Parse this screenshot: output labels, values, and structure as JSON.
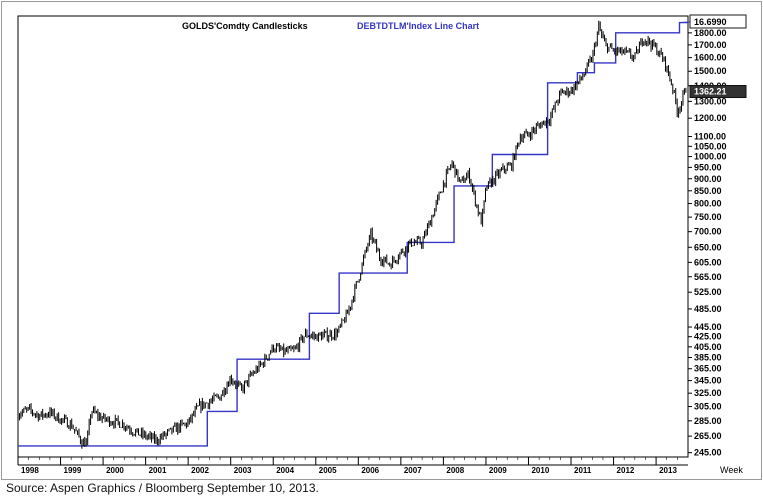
{
  "source_text": "Source: Aspen Graphics / Bloomberg September 10, 2013.",
  "chart_data": {
    "type": "line",
    "legend": {
      "placement": "top-center",
      "items": [
        {
          "label": "GOLDS'Comdty  Candlesticks",
          "color": "#000000"
        },
        {
          "label": "DEBTDTLM'Index  Line  Chart",
          "color": "#3535c8"
        }
      ]
    },
    "x_axis": {
      "label": "Week",
      "ticks": [
        "1998",
        "1999",
        "2000",
        "2001",
        "2002",
        "2003",
        "2004",
        "2005",
        "2006",
        "2007",
        "2008",
        "2009",
        "2010",
        "2011",
        "2012",
        "2013"
      ],
      "range": [
        1998.0,
        2013.75
      ]
    },
    "y_axis": {
      "scale": "log",
      "position": "right",
      "range": [
        240,
        1950
      ],
      "ticks": [
        "245.00",
        "265.00",
        "285.00",
        "305.00",
        "325.00",
        "345.00",
        "365.00",
        "385.00",
        "405.00",
        "425.00",
        "445.00",
        "485.00",
        "525.00",
        "565.00",
        "605.00",
        "650.00",
        "700.00",
        "750.00",
        "800.00",
        "850.00",
        "900.00",
        "950.00",
        "1000.00",
        "1050.00",
        "1100.00",
        "1200.00",
        "1300.00",
        "1400.00",
        "1500.00",
        "1600.00",
        "1700.00",
        "1800.00"
      ]
    },
    "value_labels": [
      {
        "text": "16.6990",
        "series": "DEBTDTLM'Index  Line  Chart",
        "style": "boxed"
      },
      {
        "text": "1362.21",
        "series": "GOLDS'Comdty  Candlesticks",
        "style": "boxed-dark"
      }
    ],
    "series": [
      {
        "name": "GOLDS'Comdty  Candlesticks",
        "style": "candles",
        "color": "#000000",
        "points": [
          [
            1998.0,
            295
          ],
          [
            1998.25,
            300
          ],
          [
            1998.5,
            292
          ],
          [
            1998.75,
            296
          ],
          [
            1999.0,
            287
          ],
          [
            1999.25,
            280
          ],
          [
            1999.5,
            258
          ],
          [
            1999.62,
            256
          ],
          [
            1999.72,
            300
          ],
          [
            1999.85,
            293
          ],
          [
            2000.0,
            288
          ],
          [
            2000.25,
            284
          ],
          [
            2000.5,
            280
          ],
          [
            2000.75,
            270
          ],
          [
            2001.0,
            265
          ],
          [
            2001.25,
            260
          ],
          [
            2001.5,
            268
          ],
          [
            2001.75,
            276
          ],
          [
            2002.0,
            282
          ],
          [
            2002.25,
            305
          ],
          [
            2002.5,
            312
          ],
          [
            2002.75,
            320
          ],
          [
            2003.0,
            350
          ],
          [
            2003.25,
            330
          ],
          [
            2003.5,
            355
          ],
          [
            2003.75,
            375
          ],
          [
            2004.0,
            405
          ],
          [
            2004.25,
            395
          ],
          [
            2004.5,
            398
          ],
          [
            2004.75,
            430
          ],
          [
            2005.0,
            425
          ],
          [
            2005.25,
            428
          ],
          [
            2005.5,
            432
          ],
          [
            2005.75,
            475
          ],
          [
            2006.0,
            560
          ],
          [
            2006.2,
            650
          ],
          [
            2006.3,
            690
          ],
          [
            2006.5,
            620
          ],
          [
            2006.75,
            600
          ],
          [
            2007.0,
            635
          ],
          [
            2007.25,
            665
          ],
          [
            2007.5,
            665
          ],
          [
            2007.75,
            760
          ],
          [
            2008.0,
            880
          ],
          [
            2008.2,
            970
          ],
          [
            2008.4,
            880
          ],
          [
            2008.6,
            920
          ],
          [
            2008.8,
            780
          ],
          [
            2008.9,
            730
          ],
          [
            2009.0,
            860
          ],
          [
            2009.2,
            900
          ],
          [
            2009.4,
            940
          ],
          [
            2009.6,
            960
          ],
          [
            2009.8,
            1100
          ],
          [
            2010.0,
            1110
          ],
          [
            2010.25,
            1160
          ],
          [
            2010.5,
            1200
          ],
          [
            2010.75,
            1350
          ],
          [
            2011.0,
            1370
          ],
          [
            2011.25,
            1450
          ],
          [
            2011.5,
            1600
          ],
          [
            2011.65,
            1850
          ],
          [
            2011.8,
            1700
          ],
          [
            2012.0,
            1650
          ],
          [
            2012.25,
            1640
          ],
          [
            2012.5,
            1600
          ],
          [
            2012.7,
            1760
          ],
          [
            2012.85,
            1720
          ],
          [
            2013.0,
            1670
          ],
          [
            2013.2,
            1570
          ],
          [
            2013.4,
            1380
          ],
          [
            2013.5,
            1240
          ],
          [
            2013.6,
            1300
          ],
          [
            2013.7,
            1380
          ]
        ]
      },
      {
        "name": "DEBTDTLM'Index  Line  Chart",
        "style": "step",
        "color": "#3535c8",
        "points": [
          [
            1998.0,
            253
          ],
          [
            1999.0,
            253
          ],
          [
            2000.0,
            253
          ],
          [
            2001.0,
            253
          ],
          [
            2001.9,
            253
          ],
          [
            2002.0,
            253
          ],
          [
            2002.4,
            253
          ],
          [
            2002.45,
            298
          ],
          [
            2003.0,
            298
          ],
          [
            2003.1,
            298
          ],
          [
            2003.15,
            382
          ],
          [
            2004.0,
            382
          ],
          [
            2004.8,
            382
          ],
          [
            2004.85,
            475
          ],
          [
            2005.0,
            475
          ],
          [
            2005.5,
            475
          ],
          [
            2005.55,
            575
          ],
          [
            2006.0,
            575
          ],
          [
            2007.0,
            575
          ],
          [
            2007.1,
            575
          ],
          [
            2007.15,
            665
          ],
          [
            2008.0,
            665
          ],
          [
            2008.2,
            665
          ],
          [
            2008.25,
            870
          ],
          [
            2009.0,
            870
          ],
          [
            2009.1,
            870
          ],
          [
            2009.15,
            1010
          ],
          [
            2010.0,
            1010
          ],
          [
            2010.4,
            1010
          ],
          [
            2010.45,
            1420
          ],
          [
            2011.0,
            1420
          ],
          [
            2011.1,
            1420
          ],
          [
            2011.15,
            1490
          ],
          [
            2011.5,
            1490
          ],
          [
            2011.55,
            1560
          ],
          [
            2012.0,
            1560
          ],
          [
            2012.05,
            1800
          ],
          [
            2013.0,
            1800
          ],
          [
            2013.1,
            1800
          ],
          [
            2013.5,
            1800
          ],
          [
            2013.55,
            1890
          ],
          [
            2013.75,
            1890
          ]
        ]
      }
    ]
  }
}
